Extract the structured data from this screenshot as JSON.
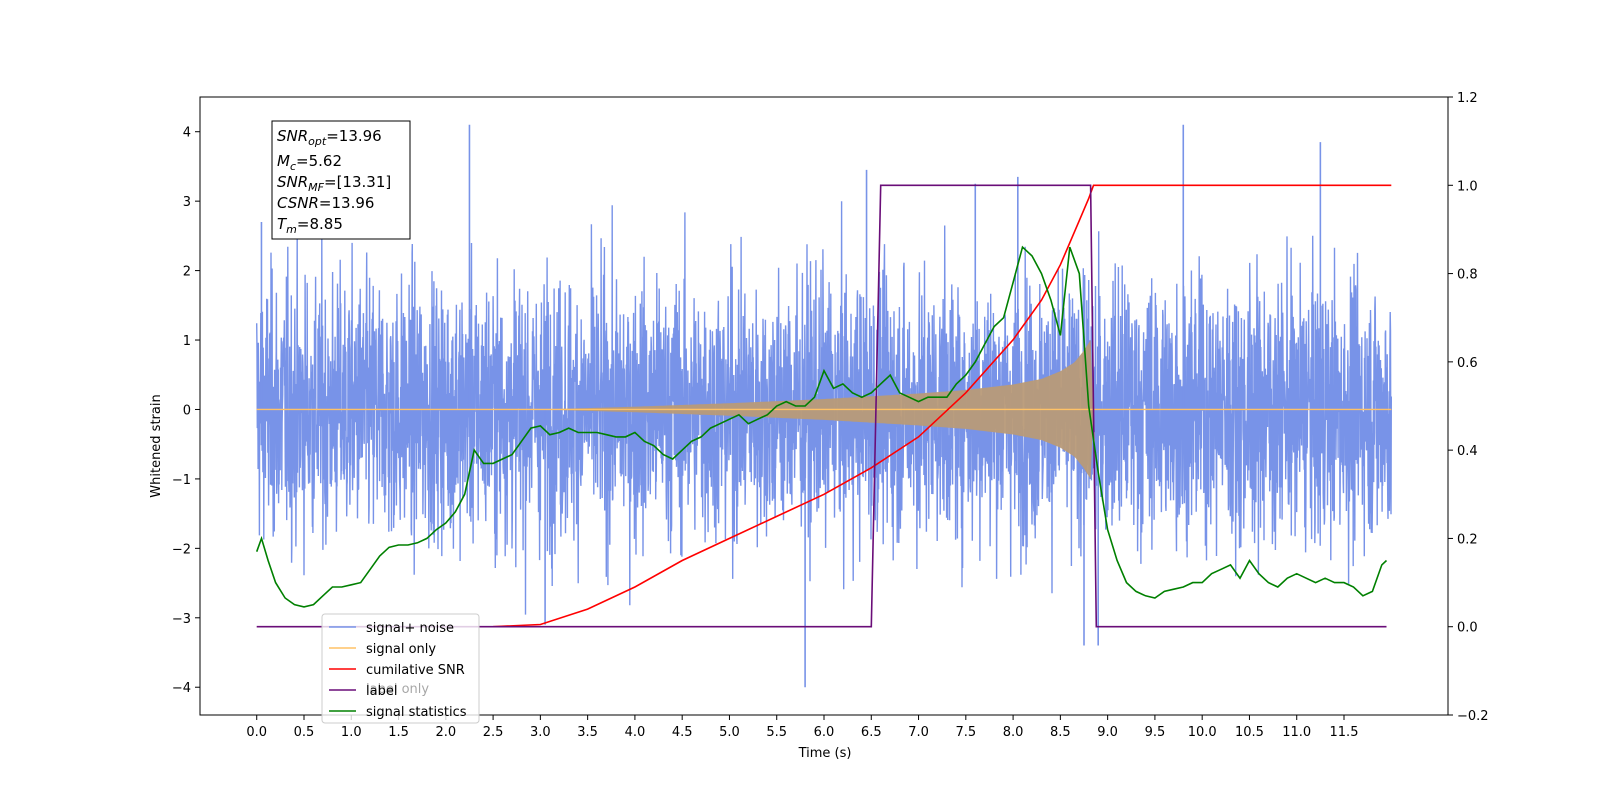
{
  "chart_data": {
    "type": "line",
    "xlabel": "Time (s)",
    "ylabel": "Whitened strain",
    "xlim": [
      -0.6,
      12.6
    ],
    "ylim": [
      -4.4,
      4.5
    ],
    "y2lim": [
      -0.2,
      1.2
    ],
    "x_ticks": [
      0.0,
      0.5,
      1.0,
      1.5,
      2.0,
      2.5,
      3.0,
      3.5,
      4.0,
      4.5,
      5.0,
      5.5,
      6.0,
      6.5,
      7.0,
      7.5,
      8.0,
      8.5,
      9.0,
      9.5,
      10.0,
      10.5,
      11.0,
      11.5
    ],
    "x_tick_labels": [
      "0.0",
      "0.5",
      "1.0",
      "1.5",
      "2.0",
      "2.5",
      "3.0",
      "3.5",
      "4.0",
      "4.5",
      "5.0",
      "5.5",
      "6.0",
      "6.5",
      "7.0",
      "7.5",
      "8.0",
      "8.5",
      "9.0",
      "9.5",
      "10.0",
      "10.5",
      "11.0",
      "11.5"
    ],
    "y_ticks": [
      4,
      3,
      2,
      1,
      0,
      -1,
      -2,
      -3,
      -4
    ],
    "y_tick_labels": [
      "4",
      "3",
      "2",
      "1",
      "0",
      "−1",
      "−2",
      "−3",
      "−4"
    ],
    "y2_ticks": [
      1.2,
      1.0,
      0.8,
      0.6,
      0.4,
      0.2,
      0.0,
      -0.2
    ],
    "y2_tick_labels": [
      "1.2",
      "1.0",
      "0.8",
      "0.6",
      "0.4",
      "0.2",
      "0.0",
      "−0.2"
    ],
    "legend": {
      "placement": "lower-left",
      "entries": [
        {
          "label": "signal+ noise",
          "color": "#7893e8"
        },
        {
          "label": "signal only",
          "color": "#ffc266"
        },
        {
          "label": "cumilative SNR",
          "color": "#ff0000"
        },
        {
          "label": "label",
          "color": "#6a0d78"
        },
        {
          "label": "signal statistics",
          "color": "#008000"
        }
      ],
      "hidden_text": "label only"
    },
    "annotation": [
      {
        "var": "SNR",
        "sub": "opt",
        "value": "=13.96"
      },
      {
        "var": "M",
        "sub": "c",
        "value": "=5.62"
      },
      {
        "var": "SNR",
        "sub": "MF",
        "value": "=[13.31]"
      },
      {
        "var": "CSNR",
        "sub": "",
        "value": "=13.96"
      },
      {
        "var": "T",
        "sub": "m",
        "value": "=8.85"
      }
    ],
    "series": [
      {
        "name": "signal+ noise",
        "axis": "left",
        "color": "#7893e8",
        "render": "noise-band",
        "x_range": [
          0.0,
          12.0
        ],
        "typical_amplitude": 1.7,
        "peak_values": [
          {
            "x": 0.05,
            "y": 2.7
          },
          {
            "x": 2.25,
            "y": 4.1
          },
          {
            "x": 5.8,
            "y": -4.0
          },
          {
            "x": 6.45,
            "y": 3.45
          },
          {
            "x": 8.05,
            "y": 3.35
          },
          {
            "x": 8.75,
            "y": -3.4
          },
          {
            "x": 9.8,
            "y": 4.1
          },
          {
            "x": 11.25,
            "y": 3.85
          },
          {
            "x": 8.9,
            "y": -3.4
          },
          {
            "x": 3.05,
            "y": -3.1
          },
          {
            "x": 7.6,
            "y": 3.25
          }
        ]
      },
      {
        "name": "signal only",
        "axis": "left",
        "color": "#ffc266",
        "render": "chirp-envelope",
        "x": [
          0.0,
          3.0,
          4.0,
          5.0,
          6.0,
          6.5,
          7.0,
          7.5,
          8.0,
          8.3,
          8.5,
          8.65,
          8.75,
          8.82,
          8.85,
          12.0
        ],
        "envelope": [
          0.0,
          0.0,
          0.04,
          0.09,
          0.15,
          0.19,
          0.23,
          0.28,
          0.36,
          0.44,
          0.55,
          0.68,
          0.85,
          1.0,
          0.0,
          0.0
        ]
      },
      {
        "name": "cumilative SNR",
        "axis": "right",
        "color": "#ff0000",
        "x": [
          2.5,
          3.0,
          3.5,
          4.0,
          4.5,
          5.0,
          5.5,
          6.0,
          6.5,
          7.0,
          7.5,
          8.0,
          8.3,
          8.5,
          8.7,
          8.8,
          8.85,
          12.0
        ],
        "values": [
          0.0,
          0.005,
          0.04,
          0.09,
          0.15,
          0.2,
          0.25,
          0.3,
          0.36,
          0.43,
          0.53,
          0.65,
          0.74,
          0.82,
          0.92,
          0.97,
          1.0,
          1.0
        ]
      },
      {
        "name": "label",
        "axis": "right",
        "color": "#6a0d78",
        "x": [
          0.0,
          6.5,
          6.6,
          8.82,
          8.88,
          11.95
        ],
        "values": [
          0.0,
          0.0,
          1.0,
          1.0,
          0.0,
          0.0
        ]
      },
      {
        "name": "signal statistics",
        "axis": "right",
        "color": "#008000",
        "x": [
          0.0,
          0.05,
          0.12,
          0.2,
          0.3,
          0.4,
          0.5,
          0.6,
          0.7,
          0.8,
          0.9,
          1.0,
          1.1,
          1.2,
          1.3,
          1.4,
          1.5,
          1.6,
          1.7,
          1.8,
          1.9,
          2.0,
          2.1,
          2.2,
          2.3,
          2.4,
          2.5,
          2.6,
          2.7,
          2.8,
          2.9,
          3.0,
          3.1,
          3.2,
          3.3,
          3.4,
          3.5,
          3.6,
          3.7,
          3.8,
          3.9,
          4.0,
          4.1,
          4.2,
          4.3,
          4.4,
          4.5,
          4.6,
          4.7,
          4.8,
          4.9,
          5.0,
          5.1,
          5.2,
          5.3,
          5.4,
          5.5,
          5.6,
          5.7,
          5.8,
          5.9,
          6.0,
          6.1,
          6.2,
          6.3,
          6.4,
          6.5,
          6.6,
          6.7,
          6.8,
          6.9,
          7.0,
          7.1,
          7.2,
          7.3,
          7.4,
          7.5,
          7.6,
          7.7,
          7.8,
          7.9,
          8.0,
          8.1,
          8.2,
          8.3,
          8.4,
          8.5,
          8.6,
          8.7,
          8.8,
          8.9,
          9.0,
          9.1,
          9.2,
          9.3,
          9.4,
          9.5,
          9.6,
          9.7,
          9.8,
          9.9,
          10.0,
          10.1,
          10.2,
          10.3,
          10.4,
          10.5,
          10.6,
          10.7,
          10.8,
          10.9,
          11.0,
          11.1,
          11.2,
          11.3,
          11.4,
          11.5,
          11.6,
          11.7,
          11.8,
          11.9,
          11.95
        ],
        "values": [
          0.17,
          0.2,
          0.15,
          0.1,
          0.065,
          0.05,
          0.045,
          0.05,
          0.07,
          0.09,
          0.09,
          0.095,
          0.1,
          0.13,
          0.16,
          0.18,
          0.185,
          0.185,
          0.19,
          0.2,
          0.22,
          0.235,
          0.26,
          0.3,
          0.4,
          0.37,
          0.37,
          0.38,
          0.39,
          0.42,
          0.45,
          0.455,
          0.435,
          0.44,
          0.45,
          0.44,
          0.44,
          0.44,
          0.435,
          0.43,
          0.43,
          0.44,
          0.42,
          0.41,
          0.39,
          0.38,
          0.4,
          0.42,
          0.43,
          0.45,
          0.46,
          0.47,
          0.48,
          0.46,
          0.47,
          0.48,
          0.5,
          0.51,
          0.5,
          0.5,
          0.52,
          0.58,
          0.54,
          0.55,
          0.53,
          0.52,
          0.53,
          0.55,
          0.57,
          0.53,
          0.52,
          0.51,
          0.52,
          0.52,
          0.52,
          0.55,
          0.57,
          0.6,
          0.64,
          0.68,
          0.7,
          0.78,
          0.86,
          0.84,
          0.8,
          0.74,
          0.66,
          0.86,
          0.8,
          0.5,
          0.35,
          0.22,
          0.15,
          0.1,
          0.08,
          0.07,
          0.065,
          0.08,
          0.085,
          0.09,
          0.1,
          0.1,
          0.12,
          0.13,
          0.14,
          0.11,
          0.15,
          0.12,
          0.1,
          0.09,
          0.11,
          0.12,
          0.11,
          0.1,
          0.11,
          0.1,
          0.1,
          0.09,
          0.07,
          0.08,
          0.14,
          0.15
        ]
      }
    ]
  }
}
